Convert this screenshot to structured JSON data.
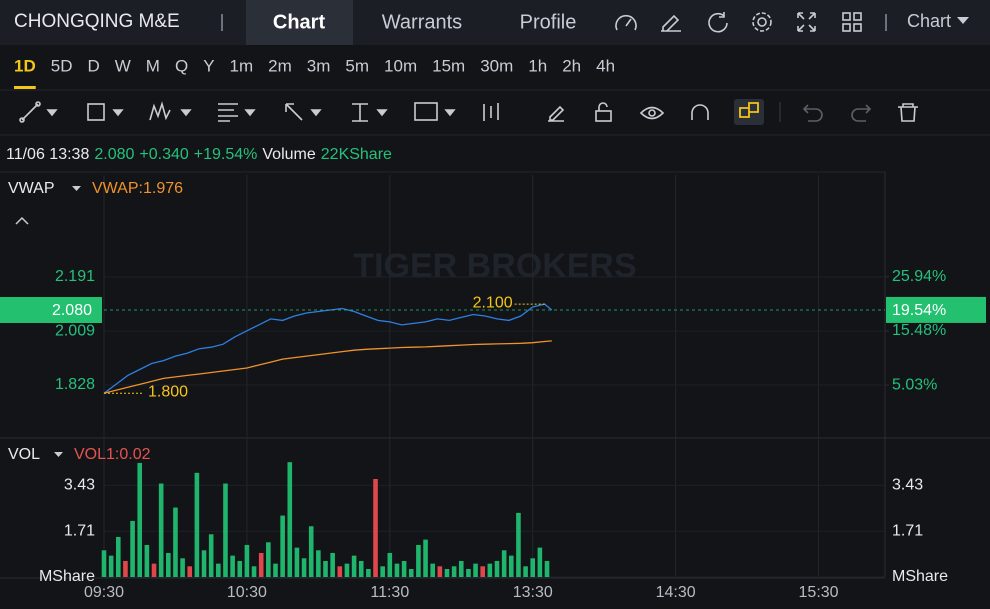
{
  "header": {
    "title": "CHONGQING M&E",
    "tabs": [
      "Chart",
      "Warrants",
      "Profile"
    ],
    "menu": "Chart"
  },
  "periods": [
    "1D",
    "5D",
    "D",
    "W",
    "M",
    "Q",
    "Y",
    "1m",
    "2m",
    "3m",
    "5m",
    "10m",
    "15m",
    "30m",
    "1h",
    "2h",
    "4h"
  ],
  "quote": {
    "time": "11/06 13:38",
    "price": "2.080",
    "change": "+0.340",
    "change_pct": "+19.54%",
    "volume_label": "Volume",
    "volume": "22KShare"
  },
  "price_chart": {
    "type": "line",
    "indicator": "VWAP",
    "indicator_value": "VWAP:1.976",
    "watermark": "TIGER BROKERS",
    "xlim": [
      0,
      330
    ],
    "xticks": [
      {
        "value": 0,
        "label": "09:30"
      },
      {
        "value": 60,
        "label": "10:30"
      },
      {
        "value": 120,
        "label": "11:30"
      },
      {
        "value": 180,
        "label": "13:30"
      },
      {
        "value": 240,
        "label": "14:30"
      },
      {
        "value": 300,
        "label": "15:30"
      }
    ],
    "ylim": [
      1.653,
      2.534
    ],
    "yticks": [
      1.828,
      2.009,
      2.191
    ],
    "y2lim": [
      -5.0,
      45.6
    ],
    "y2ticks": [
      {
        "value": 5.03,
        "label": "5.03%"
      },
      {
        "value": 15.48,
        "label": "15.48%"
      },
      {
        "value": 25.94,
        "label": "25.94%"
      }
    ],
    "x": [
      0,
      5,
      10,
      15,
      20,
      25,
      30,
      35,
      40,
      45,
      50,
      55,
      60,
      65,
      70,
      75,
      80,
      85,
      90,
      95,
      100,
      105,
      110,
      115,
      120,
      125,
      130,
      135,
      140,
      145,
      150,
      155,
      160,
      165,
      170,
      175,
      180,
      185,
      188
    ],
    "series": [
      {
        "color": "#2f7fe0",
        "values": [
          1.8,
          1.83,
          1.86,
          1.88,
          1.9,
          1.91,
          1.925,
          1.935,
          1.95,
          1.955,
          1.965,
          1.99,
          2.01,
          2.03,
          2.05,
          2.045,
          2.06,
          2.07,
          2.075,
          2.08,
          2.085,
          2.075,
          2.06,
          2.045,
          2.04,
          2.03,
          2.035,
          2.04,
          2.05,
          2.045,
          2.055,
          2.065,
          2.06,
          2.05,
          2.045,
          2.06,
          2.09,
          2.1,
          2.08
        ]
      },
      {
        "color": "#f0932a",
        "values": [
          1.8,
          1.81,
          1.82,
          1.83,
          1.84,
          1.85,
          1.855,
          1.86,
          1.865,
          1.87,
          1.875,
          1.88,
          1.885,
          1.895,
          1.905,
          1.915,
          1.92,
          1.925,
          1.93,
          1.935,
          1.94,
          1.945,
          1.948,
          1.95,
          1.952,
          1.954,
          1.955,
          1.956,
          1.958,
          1.96,
          1.962,
          1.964,
          1.965,
          1.966,
          1.967,
          1.968,
          1.97,
          1.974,
          1.976
        ]
      }
    ],
    "last": {
      "value": 2.08,
      "label": "2.080"
    },
    "last_pct": {
      "value": 19.54,
      "label": "19.54%"
    },
    "high": {
      "x": 185,
      "value": 2.1,
      "label": "2.100"
    },
    "low": {
      "x": 0,
      "value": 1.8,
      "label": "1.800"
    }
  },
  "volume_chart": {
    "type": "bar",
    "indicator": "VOL",
    "indicator_value": "VOL1:0.02",
    "xlim": [
      0,
      330
    ],
    "ylim": [
      0,
      5.13
    ],
    "yticks": [
      {
        "value": 0,
        "label": "MShare"
      },
      1.71,
      3.43
    ],
    "x": [
      0,
      3,
      6,
      9,
      12,
      15,
      18,
      21,
      24,
      27,
      30,
      33,
      36,
      39,
      42,
      45,
      48,
      51,
      54,
      57,
      60,
      63,
      66,
      69,
      72,
      75,
      78,
      81,
      84,
      87,
      90,
      93,
      96,
      99,
      102,
      105,
      108,
      111,
      114,
      117,
      120,
      123,
      126,
      129,
      132,
      135,
      138,
      141,
      144,
      147,
      150,
      153,
      156,
      159,
      162,
      165,
      168,
      171,
      174,
      177,
      180,
      183,
      186
    ],
    "values": [
      1.0,
      0.8,
      1.5,
      0.6,
      2.1,
      4.27,
      1.2,
      0.5,
      3.5,
      0.9,
      2.6,
      0.7,
      0.4,
      3.9,
      1.0,
      1.6,
      0.5,
      3.5,
      0.8,
      0.6,
      1.2,
      0.4,
      0.9,
      1.3,
      0.5,
      2.3,
      4.3,
      1.1,
      0.7,
      1.9,
      1.0,
      0.6,
      0.9,
      0.4,
      0.5,
      0.8,
      0.6,
      0.3,
      3.67,
      0.4,
      0.9,
      0.5,
      0.6,
      0.3,
      1.2,
      1.4,
      0.5,
      0.4,
      0.3,
      0.4,
      0.6,
      0.3,
      0.5,
      0.4,
      0.5,
      0.6,
      1.0,
      0.8,
      2.4,
      0.4,
      0.7,
      1.1,
      0.6
    ],
    "colors": [
      "#1fb56d",
      "#1fb56d",
      "#1fb56d",
      "#e0474c",
      "#1fb56d",
      "#1fb56d",
      "#1fb56d",
      "#e0474c",
      "#1fb56d",
      "#1fb56d",
      "#1fb56d",
      "#1fb56d",
      "#e0474c",
      "#1fb56d",
      "#1fb56d",
      "#1fb56d",
      "#1fb56d",
      "#1fb56d",
      "#1fb56d",
      "#1fb56d",
      "#1fb56d",
      "#1fb56d",
      "#e0474c",
      "#1fb56d",
      "#1fb56d",
      "#1fb56d",
      "#1fb56d",
      "#1fb56d",
      "#1fb56d",
      "#1fb56d",
      "#1fb56d",
      "#1fb56d",
      "#1fb56d",
      "#e0474c",
      "#1fb56d",
      "#1fb56d",
      "#1fb56d",
      "#1fb56d",
      "#e0474c",
      "#1fb56d",
      "#1fb56d",
      "#1fb56d",
      "#1fb56d",
      "#1fb56d",
      "#1fb56d",
      "#1fb56d",
      "#1fb56d",
      "#e0474c",
      "#1fb56d",
      "#1fb56d",
      "#1fb56d",
      "#1fb56d",
      "#1fb56d",
      "#e0474c",
      "#1fb56d",
      "#1fb56d",
      "#1fb56d",
      "#1fb56d",
      "#1fb56d",
      "#1fb56d",
      "#1fb56d",
      "#1fb56d",
      "#1fb56d"
    ]
  }
}
